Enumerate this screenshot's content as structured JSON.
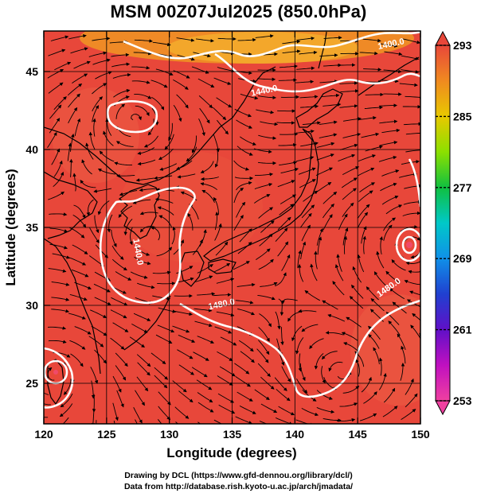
{
  "title": "MSM 00Z07Jul2025 (850.0hPa)",
  "map": {
    "lon_range": [
      120,
      150
    ],
    "lat_range": [
      22.4,
      47.6
    ],
    "x_ticks": [
      120,
      125,
      130,
      135,
      140,
      145,
      150
    ],
    "y_ticks": [
      25,
      30,
      35,
      40,
      45
    ],
    "x_label": "Longitude (degrees)",
    "y_label": "Latitude  (degrees)",
    "field_color": "#e8473a",
    "warm_tint": "#f08030",
    "coast_color": "#000000",
    "contour_color": "#ffffff",
    "contour_labels": [
      {
        "text": "1400.0",
        "lon": 147.7,
        "lat": 46.6
      },
      {
        "text": "1440.0",
        "lon": 137.6,
        "lat": 43.6
      },
      {
        "text": "1440.0",
        "lon": 127.3,
        "lat": 33.4
      },
      {
        "text": "1480.0",
        "lon": 134.2,
        "lat": 29.9
      },
      {
        "text": "1480.0",
        "lon": 147.6,
        "lat": 31.0
      }
    ]
  },
  "colorbar": {
    "min": 253,
    "max": 293,
    "ticks": [
      "293",
      "285",
      "277",
      "269",
      "261",
      "253"
    ],
    "colors": [
      "#e8473a",
      "#f08a20",
      "#e8c800",
      "#8ce000",
      "#10c040",
      "#00c8c8",
      "#1090e8",
      "#2040d0",
      "#6010c8",
      "#c010c0",
      "#f040a0"
    ]
  },
  "credits": {
    "line1": "Drawing by DCL (https://www.gfd-dennou.org/library/dcl/)",
    "line2": "Data from http://database.rish.kyoto-u.ac.jp/arch/jmadata/"
  }
}
